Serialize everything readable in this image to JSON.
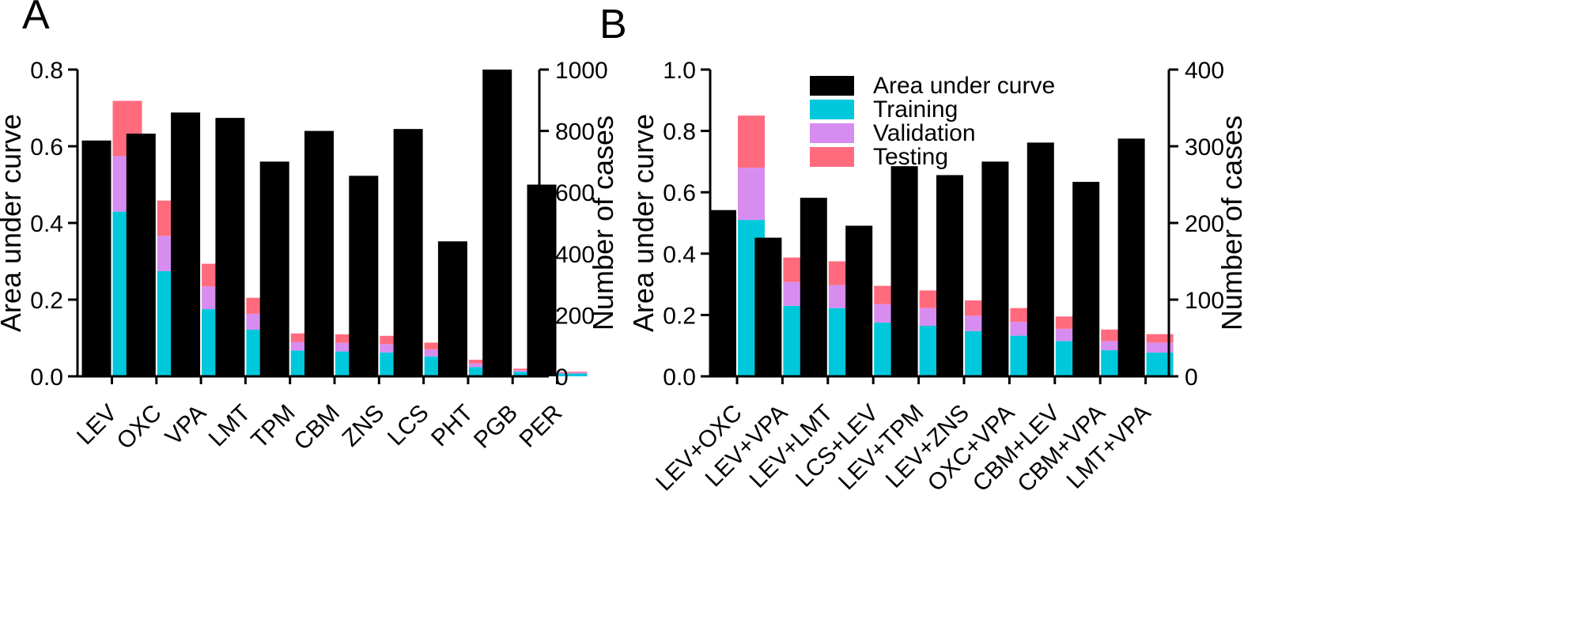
{
  "chart_data": [
    {
      "panel_label": "A",
      "type": "bar",
      "categories": [
        "LEV",
        "OXC",
        "VPA",
        "LMT",
        "TPM",
        "CBM",
        "ZNS",
        "LCS",
        "PHT",
        "PGB",
        "PER"
      ],
      "left_axis": {
        "label": "Area under curve",
        "ylim": [
          0,
          0.8
        ],
        "ticks": [
          0.0,
          0.2,
          0.4,
          0.6,
          0.8
        ],
        "tick_labels": [
          "0.0",
          "0.2",
          "0.4",
          "0.6",
          "0.8"
        ]
      },
      "right_axis": {
        "label": "Number of cases",
        "ylim": [
          0,
          1000
        ],
        "ticks": [
          0,
          200,
          400,
          600,
          800,
          1000
        ],
        "tick_labels": [
          "0",
          "200",
          "400",
          "600",
          "800",
          "1000"
        ]
      },
      "series": [
        {
          "name": "Area under curve",
          "axis": "left",
          "color": "#000000",
          "values": [
            0.615,
            0.633,
            0.688,
            0.674,
            0.56,
            0.64,
            0.523,
            0.645,
            0.352,
            0.8,
            0.5
          ]
        },
        {
          "name": "Training",
          "axis": "right",
          "stack": "cases",
          "color": "#00C8DC",
          "values": [
            537,
            343,
            219,
            152,
            84,
            81,
            78,
            65,
            30,
            15,
            9
          ]
        },
        {
          "name": "Validation",
          "axis": "right",
          "stack": "cases",
          "color": "#D78CF0",
          "values": [
            181,
            115,
            74,
            52,
            28,
            28,
            27,
            23,
            12,
            5,
            3
          ]
        },
        {
          "name": "Testing",
          "axis": "right",
          "stack": "cases",
          "color": "#FF6B7D",
          "values": [
            180,
            115,
            74,
            52,
            28,
            28,
            27,
            22,
            12,
            5,
            3
          ]
        }
      ]
    },
    {
      "panel_label": "B",
      "type": "bar",
      "categories": [
        "LEV+OXC",
        "LEV+VPA",
        "LEV+LMT",
        "LCS+LEV",
        "LEV+TPM",
        "LEV+ZNS",
        "OXC+VPA",
        "CBM+LEV",
        "CBM+VPA",
        "LMT+VPA"
      ],
      "left_axis": {
        "label": "Area under curve",
        "ylim": [
          0,
          1.0
        ],
        "ticks": [
          0.0,
          0.2,
          0.4,
          0.6,
          0.8,
          1.0
        ],
        "tick_labels": [
          "0.0",
          "0.2",
          "0.4",
          "0.6",
          "0.8",
          "1.0"
        ]
      },
      "right_axis": {
        "label": "Number of cases",
        "ylim": [
          0,
          400
        ],
        "ticks": [
          0,
          100,
          200,
          300,
          400
        ],
        "tick_labels": [
          "0",
          "100",
          "200",
          "300",
          "400"
        ]
      },
      "legend": {
        "position": "top-center",
        "entries": [
          "Area under curve",
          "Training",
          "Validation",
          "Testing"
        ]
      },
      "series": [
        {
          "name": "Area under curve",
          "axis": "left",
          "color": "#000000",
          "values": [
            0.542,
            0.452,
            0.582,
            0.491,
            0.685,
            0.656,
            0.7,
            0.762,
            0.634,
            0.775
          ]
        },
        {
          "name": "Training",
          "axis": "right",
          "stack": "cases",
          "color": "#00C8DC",
          "values": [
            204,
            92,
            89,
            70,
            66,
            59,
            53,
            46,
            34,
            31
          ]
        },
        {
          "name": "Validation",
          "axis": "right",
          "stack": "cases",
          "color": "#D78CF0",
          "values": [
            68,
            31,
            30,
            24,
            23,
            20,
            18,
            16,
            12,
            13
          ]
        },
        {
          "name": "Testing",
          "axis": "right",
          "stack": "cases",
          "color": "#FF6B7D",
          "values": [
            68,
            32,
            31,
            24,
            23,
            20,
            18,
            16,
            15,
            11
          ]
        }
      ]
    }
  ]
}
